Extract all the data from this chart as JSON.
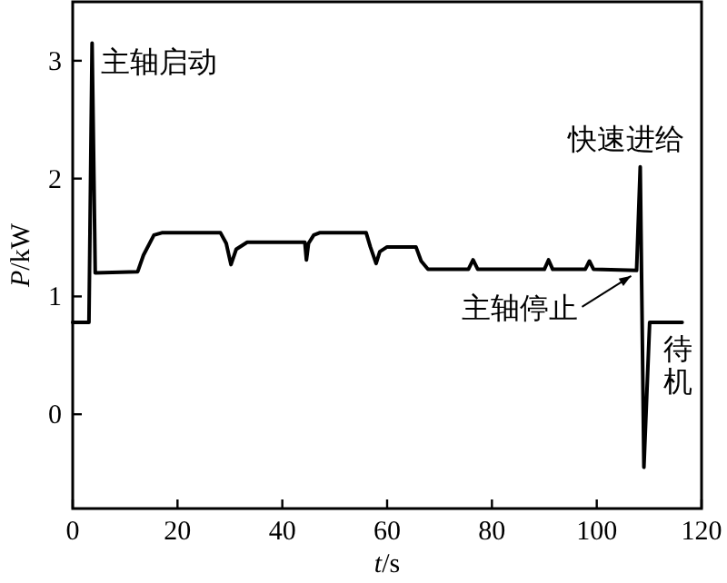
{
  "chart_data": {
    "type": "line",
    "xlabel": "t/s",
    "ylabel": "P/kW",
    "xlim": [
      0,
      120
    ],
    "ylim": [
      -0.8,
      3.5
    ],
    "xticks": [
      0,
      20,
      40,
      60,
      80,
      100,
      120
    ],
    "yticks": [
      0,
      1,
      2,
      3
    ],
    "grid": false,
    "marker": "none",
    "line_style": "solid",
    "series": [
      {
        "color": "#000000",
        "x": [
          0,
          3.1,
          3.7,
          4.3,
          12.4,
          13.5,
          15.5,
          17,
          28.2,
          29.3,
          30.2,
          31.2,
          33.3,
          44.3,
          44.6,
          45,
          46,
          47.1,
          56,
          56.8,
          57.9,
          58.6,
          60,
          65.5,
          66.5,
          67.8,
          75.5,
          76.4,
          77.3,
          90,
          90.8,
          91.6,
          97.8,
          98.6,
          99.4,
          107.6,
          108.3,
          109,
          110.1,
          116.3
        ],
        "values": [
          0.78,
          0.78,
          3.15,
          1.2,
          1.21,
          1.35,
          1.52,
          1.54,
          1.54,
          1.45,
          1.27,
          1.4,
          1.46,
          1.46,
          1.31,
          1.45,
          1.52,
          1.54,
          1.54,
          1.42,
          1.28,
          1.38,
          1.42,
          1.42,
          1.3,
          1.23,
          1.23,
          1.31,
          1.23,
          1.23,
          1.31,
          1.23,
          1.23,
          1.3,
          1.23,
          1.22,
          2.1,
          -0.45,
          0.78,
          0.78
        ]
      }
    ],
    "annotations": [
      {
        "text": "主轴启动",
        "x": 3.7,
        "y": 3.15
      },
      {
        "text": "快速进给",
        "x": 108.3,
        "y": 2.1
      },
      {
        "text": "主轴停止",
        "x": 107.6,
        "y": 1.22
      },
      {
        "text": "待机",
        "x": 113,
        "y": 0.78
      }
    ]
  }
}
